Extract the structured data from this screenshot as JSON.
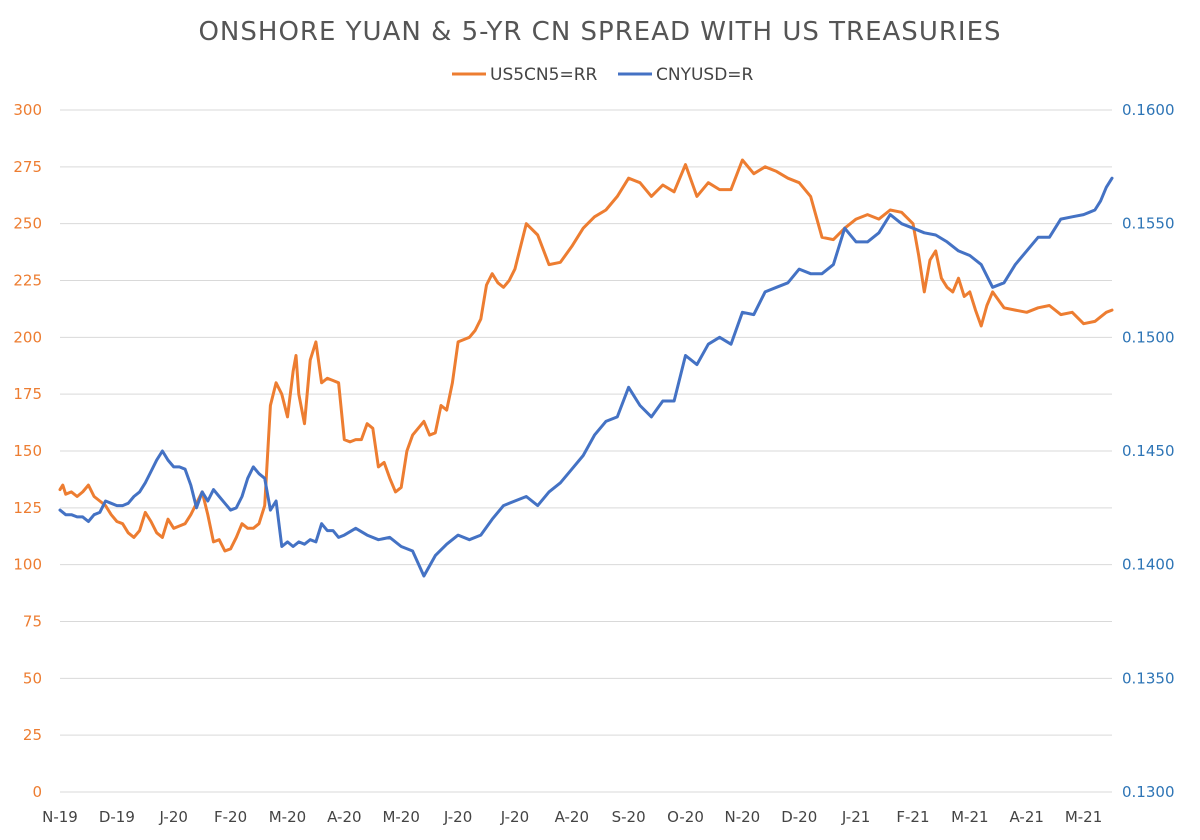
{
  "chart_data": {
    "type": "line",
    "title": "ONSHORE YUAN & 5-YR CN SPREAD WITH US TREASURIES",
    "legend_position": "top",
    "grid": true,
    "colors": {
      "US5CN5=RR": "#ED7D31",
      "CNYUSD=R": "#4472C4"
    },
    "left_axis": {
      "ylim": [
        0,
        300
      ],
      "ticks": [
        "0",
        "25",
        "50",
        "75",
        "100",
        "125",
        "150",
        "175",
        "200",
        "225",
        "250",
        "275",
        "300"
      ],
      "color": "#ED7D31"
    },
    "right_axis": {
      "ylim": [
        0.13,
        0.16
      ],
      "ticks": [
        "0.1300",
        "0.1350",
        "0.1400",
        "0.1450",
        "0.1500",
        "0.1550",
        "0.1600"
      ],
      "color": "#2E75B6"
    },
    "x_ticks": [
      "N-19",
      "D-19",
      "J-20",
      "F-20",
      "M-20",
      "A-20",
      "M-20",
      "J-20",
      "J-20",
      "A-20",
      "S-20",
      "O-20",
      "N-20",
      "D-20",
      "J-21",
      "F-21",
      "M-21",
      "A-21",
      "M-21"
    ],
    "x_range": [
      0,
      18.5
    ],
    "series": [
      {
        "name": "US5CN5=RR",
        "axis": "left",
        "x": [
          0,
          0.05,
          0.1,
          0.2,
          0.3,
          0.4,
          0.5,
          0.6,
          0.7,
          0.8,
          0.9,
          1.0,
          1.1,
          1.2,
          1.3,
          1.4,
          1.5,
          1.6,
          1.7,
          1.8,
          1.9,
          2.0,
          2.1,
          2.2,
          2.3,
          2.4,
          2.5,
          2.6,
          2.7,
          2.8,
          2.9,
          3.0,
          3.1,
          3.2,
          3.3,
          3.4,
          3.5,
          3.6,
          3.7,
          3.8,
          3.9,
          4.0,
          4.1,
          4.15,
          4.2,
          4.3,
          4.4,
          4.5,
          4.6,
          4.7,
          4.8,
          4.9,
          5.0,
          5.1,
          5.2,
          5.3,
          5.4,
          5.5,
          5.6,
          5.7,
          5.8,
          5.9,
          6.0,
          6.1,
          6.2,
          6.3,
          6.4,
          6.5,
          6.6,
          6.7,
          6.8,
          6.9,
          7.0,
          7.1,
          7.2,
          7.3,
          7.4,
          7.5,
          7.6,
          7.7,
          7.8,
          7.9,
          8.0,
          8.2,
          8.4,
          8.6,
          8.8,
          9.0,
          9.2,
          9.4,
          9.6,
          9.8,
          10.0,
          10.2,
          10.4,
          10.6,
          10.8,
          11.0,
          11.2,
          11.4,
          11.6,
          11.8,
          12.0,
          12.2,
          12.4,
          12.6,
          12.8,
          13.0,
          13.2,
          13.4,
          13.6,
          13.8,
          14.0,
          14.2,
          14.4,
          14.6,
          14.8,
          15.0,
          15.1,
          15.2,
          15.3,
          15.4,
          15.5,
          15.6,
          15.7,
          15.8,
          15.9,
          16.0,
          16.1,
          16.2,
          16.3,
          16.4,
          16.6,
          16.8,
          17.0,
          17.2,
          17.4,
          17.6,
          17.8,
          18.0,
          18.2,
          18.4,
          18.5
        ],
        "values": [
          133,
          135,
          131,
          132,
          130,
          132,
          135,
          130,
          128,
          126,
          122,
          119,
          118,
          114,
          112,
          115,
          123,
          119,
          114,
          112,
          120,
          116,
          117,
          118,
          122,
          127,
          132,
          122,
          110,
          111,
          106,
          107,
          112,
          118,
          116,
          116,
          118,
          126,
          170,
          180,
          175,
          165,
          185,
          192,
          175,
          162,
          190,
          198,
          180,
          182,
          181,
          180,
          155,
          154,
          155,
          155,
          162,
          160,
          143,
          145,
          138,
          132,
          134,
          150,
          157,
          160,
          163,
          157,
          158,
          170,
          168,
          180,
          198,
          199,
          200,
          203,
          208,
          223,
          228,
          224,
          222,
          225,
          230,
          250,
          245,
          232,
          233,
          240,
          248,
          253,
          256,
          262,
          270,
          268,
          262,
          267,
          264,
          276,
          262,
          268,
          265,
          265,
          278,
          272,
          275,
          273,
          270,
          268,
          262,
          244,
          243,
          248,
          252,
          254,
          252,
          256,
          255,
          250,
          236,
          220,
          234,
          238,
          226,
          222,
          220,
          226,
          218,
          220,
          212,
          205,
          214,
          220,
          213,
          212,
          211,
          213,
          214,
          210,
          211,
          206,
          207,
          211,
          212
        ]
      },
      {
        "name": "CNYUSD=R",
        "axis": "right",
        "x": [
          0,
          0.1,
          0.2,
          0.3,
          0.4,
          0.5,
          0.6,
          0.7,
          0.8,
          0.9,
          1.0,
          1.1,
          1.2,
          1.3,
          1.4,
          1.5,
          1.6,
          1.7,
          1.8,
          1.9,
          2.0,
          2.1,
          2.2,
          2.3,
          2.4,
          2.5,
          2.6,
          2.7,
          2.8,
          2.9,
          3.0,
          3.1,
          3.2,
          3.3,
          3.4,
          3.5,
          3.6,
          3.7,
          3.8,
          3.9,
          4.0,
          4.1,
          4.2,
          4.3,
          4.4,
          4.5,
          4.6,
          4.7,
          4.8,
          4.9,
          5.0,
          5.2,
          5.4,
          5.6,
          5.8,
          6.0,
          6.2,
          6.4,
          6.6,
          6.8,
          7.0,
          7.2,
          7.4,
          7.6,
          7.8,
          8.0,
          8.2,
          8.4,
          8.6,
          8.8,
          9.0,
          9.2,
          9.4,
          9.6,
          9.8,
          10.0,
          10.2,
          10.4,
          10.6,
          10.8,
          11.0,
          11.2,
          11.4,
          11.6,
          11.8,
          12.0,
          12.2,
          12.4,
          12.6,
          12.8,
          13.0,
          13.2,
          13.4,
          13.6,
          13.8,
          14.0,
          14.2,
          14.4,
          14.6,
          14.8,
          15.0,
          15.2,
          15.4,
          15.6,
          15.8,
          16.0,
          16.2,
          16.4,
          16.6,
          16.8,
          17.0,
          17.2,
          17.4,
          17.6,
          17.8,
          18.0,
          18.1,
          18.2,
          18.3,
          18.4,
          18.5
        ],
        "values": [
          0.1424,
          0.1422,
          0.1422,
          0.1421,
          0.1421,
          0.1419,
          0.1422,
          0.1423,
          0.1428,
          0.1427,
          0.1426,
          0.1426,
          0.1427,
          0.143,
          0.1432,
          0.1436,
          0.1441,
          0.1446,
          0.145,
          0.1446,
          0.1443,
          0.1443,
          0.1442,
          0.1435,
          0.1425,
          0.1432,
          0.1428,
          0.1433,
          0.143,
          0.1427,
          0.1424,
          0.1425,
          0.143,
          0.1438,
          0.1443,
          0.144,
          0.1438,
          0.1424,
          0.1428,
          0.1408,
          0.141,
          0.1408,
          0.141,
          0.1409,
          0.1411,
          0.141,
          0.1418,
          0.1415,
          0.1415,
          0.1412,
          0.1413,
          0.1416,
          0.1413,
          0.1411,
          0.1412,
          0.1408,
          0.1406,
          0.1395,
          0.1404,
          0.1409,
          0.1413,
          0.1411,
          0.1413,
          0.142,
          0.1426,
          0.1428,
          0.143,
          0.1426,
          0.1432,
          0.1436,
          0.1442,
          0.1448,
          0.1457,
          0.1463,
          0.1465,
          0.1478,
          0.147,
          0.1465,
          0.1472,
          0.1472,
          0.1492,
          0.1488,
          0.1497,
          0.15,
          0.1497,
          0.1511,
          0.151,
          0.152,
          0.1522,
          0.1524,
          0.153,
          0.1528,
          0.1528,
          0.1532,
          0.1548,
          0.1542,
          0.1542,
          0.1546,
          0.1554,
          0.155,
          0.1548,
          0.1546,
          0.1545,
          0.1542,
          0.1538,
          0.1536,
          0.1532,
          0.1522,
          0.1524,
          0.1532,
          0.1538,
          0.1544,
          0.1544,
          0.1552,
          0.1553,
          0.1554,
          0.1555,
          0.1556,
          0.156,
          0.1566,
          0.157
        ]
      }
    ]
  }
}
